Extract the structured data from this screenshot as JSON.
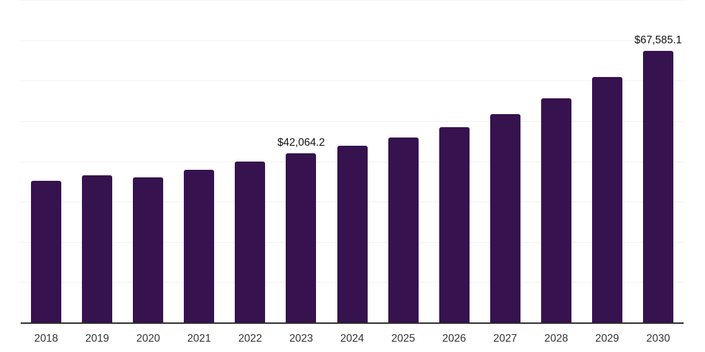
{
  "chart_data": {
    "type": "bar",
    "title": "",
    "xlabel": "",
    "ylabel": "",
    "categories": [
      "2018",
      "2019",
      "2020",
      "2021",
      "2022",
      "2023",
      "2024",
      "2025",
      "2026",
      "2027",
      "2028",
      "2029",
      "2030"
    ],
    "values": [
      35300,
      36600,
      36100,
      38000,
      40100,
      42064.2,
      44000,
      46000,
      48700,
      51900,
      55700,
      61000,
      67585.1
    ],
    "data_labels": {
      "2023": "$42,064.2",
      "2030": "$67,585.1"
    },
    "ylim": [
      0,
      80000
    ],
    "gridline_step": 10000,
    "grid": true,
    "legend_position": "none",
    "bar_color": "#36124f"
  },
  "colors": {
    "bar": "#36124f",
    "gridline": "#f2f2f2",
    "axis_line": "#2b2b2b",
    "tick_label": "#333333",
    "data_label": "#111111",
    "background": "#ffffff"
  }
}
